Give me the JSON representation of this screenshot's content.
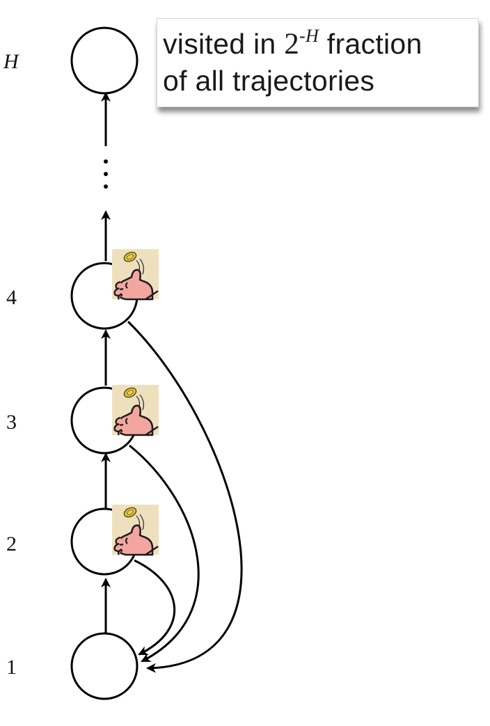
{
  "callout": {
    "line1_prefix": "visited in ",
    "line1_base": "2",
    "line1_exp_sign": "-",
    "line1_exp_var": "H",
    "line1_suffix": " fraction",
    "line2": "of all trajectories"
  },
  "levels": {
    "top": "H",
    "level4": "4",
    "level3": "3",
    "level2": "2",
    "level1": "1"
  },
  "ellipsis": "⋮",
  "icons": {
    "coin_flip": "coin-flip-thumb-icon"
  }
}
